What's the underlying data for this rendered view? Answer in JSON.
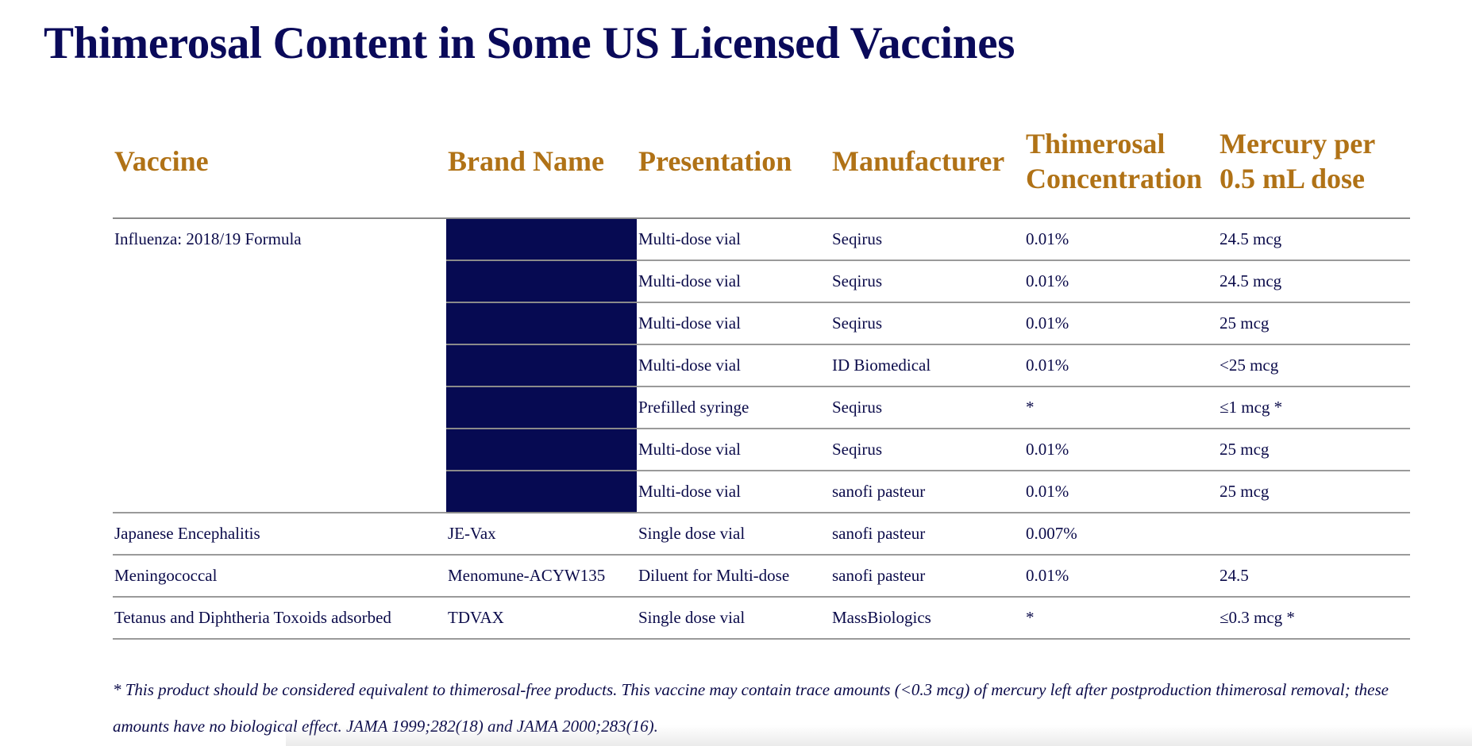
{
  "title": "Thimerosal Content in Some US Licensed Vaccines",
  "table": {
    "headers": {
      "vaccine": "Vaccine",
      "brand": "Brand Name",
      "presentation": "Presentation",
      "manufacturer": "Manufacturer",
      "concentration": "Thimerosal Concentration",
      "mercury": "Mercury per 0.5 mL dose"
    },
    "influenza": {
      "vaccine": "Influenza: 2018/19 Formula",
      "rows": [
        {
          "presentation": "Multi-dose vial",
          "manufacturer": "Seqirus",
          "concentration": "0.01%",
          "mercury": "24.5 mcg"
        },
        {
          "presentation": "Multi-dose vial",
          "manufacturer": "Seqirus",
          "concentration": "0.01%",
          "mercury": "24.5 mcg"
        },
        {
          "presentation": "Multi-dose vial",
          "manufacturer": "Seqirus",
          "concentration": "0.01%",
          "mercury": "25 mcg"
        },
        {
          "presentation": "Multi-dose vial",
          "manufacturer": "ID Biomedical",
          "concentration": "0.01%",
          "mercury": "<25 mcg"
        },
        {
          "presentation": "Prefilled syringe",
          "manufacturer": "Seqirus",
          "concentration": "*",
          "mercury": "≤1 mcg *"
        },
        {
          "presentation": "Multi-dose vial",
          "manufacturer": "Seqirus",
          "concentration": "0.01%",
          "mercury": "25 mcg"
        },
        {
          "presentation": "Multi-dose vial",
          "manufacturer": "sanofi pasteur",
          "concentration": "0.01%",
          "mercury": "25 mcg"
        }
      ]
    },
    "other_rows": [
      {
        "vaccine": "Japanese Encephalitis",
        "brand": "JE-Vax",
        "presentation": "Single dose vial",
        "manufacturer": "sanofi pasteur",
        "concentration": "0.007%",
        "mercury": ""
      },
      {
        "vaccine": "Meningococcal",
        "brand": "Menomune-ACYW135",
        "presentation": "Diluent for Multi-dose",
        "manufacturer": "sanofi pasteur",
        "concentration": "0.01%",
        "mercury": "24.5"
      },
      {
        "vaccine": "Tetanus and Diphtheria Toxoids adsorbed",
        "brand": "TDVAX",
        "presentation": "Single dose vial",
        "manufacturer": "MassBiologics",
        "concentration": "*",
        "mercury": "≤0.3 mcg *"
      }
    ]
  },
  "footnote": "* This product should be considered equivalent to thimerosal-free products. This vaccine may contain trace amounts (<0.3 mcg) of mercury left after postproduction thimerosal removal; these amounts have no biological effect. JAMA 1999;282(18) and JAMA 2000;283(16).",
  "colors": {
    "title": "#0a0a5a",
    "header": "#b07216",
    "redaction": "#060a52",
    "body_text": "#0b0b4a"
  }
}
